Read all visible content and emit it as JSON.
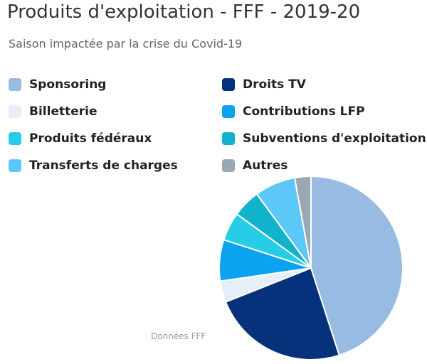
{
  "chart_data": {
    "type": "pie",
    "title": "Produits d'exploitation - FFF - 2019-20",
    "subtitle": "Saison impactée par la crise du Covid-19",
    "credits": "Données FFF",
    "legend_placement": "top",
    "slices": [
      {
        "name": "Sponsoring",
        "value": 45.7,
        "color": "#97bbe3"
      },
      {
        "name": "Droits TV",
        "value": 24.3,
        "color": "#06327b"
      },
      {
        "name": "Billetterie",
        "value": 3.8,
        "color": "#e6eff9"
      },
      {
        "name": "Contributions LFP",
        "value": 7.4,
        "color": "#0ba3f0"
      },
      {
        "name": "Produits fédéraux",
        "value": 5.1,
        "color": "#27cde6"
      },
      {
        "name": "Subventions d'exploitation",
        "value": 5.0,
        "color": "#11b2cc"
      },
      {
        "name": "Transferts de charges",
        "value": 7.3,
        "color": "#5cc8f8"
      },
      {
        "name": "Autres",
        "value": 2.9,
        "color": "#9aa8b3"
      }
    ]
  }
}
